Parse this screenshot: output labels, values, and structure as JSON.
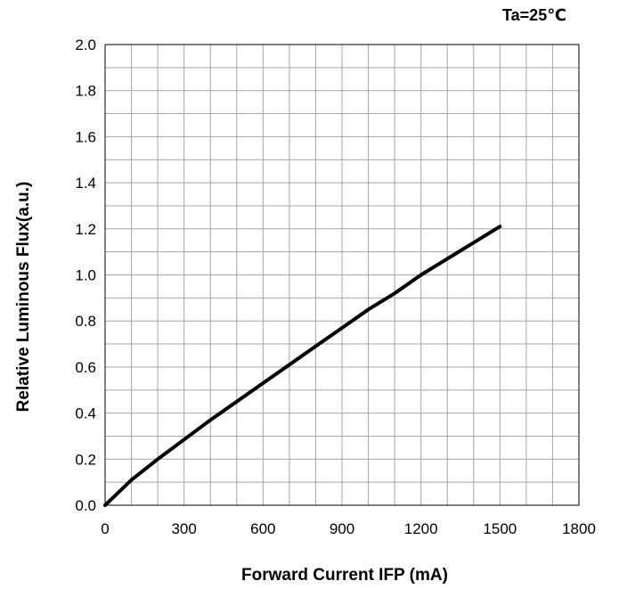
{
  "chart_data": {
    "type": "line",
    "title": "",
    "annotation": "Ta=25℃",
    "xlabel": "Forward Current IFP (mA)",
    "ylabel": "Relative Luminous Flux(a.u.)",
    "xlim": [
      0,
      1800
    ],
    "ylim": [
      0,
      2.0
    ],
    "x_ticks": [
      "0",
      "300",
      "600",
      "900",
      "1200",
      "1500",
      "1800"
    ],
    "y_ticks": [
      "0.0",
      "0.2",
      "0.4",
      "0.6",
      "0.8",
      "1.0",
      "1.2",
      "1.4",
      "1.6",
      "1.8",
      "2.0"
    ],
    "grid": true,
    "series": [
      {
        "x": [
          0,
          100,
          200,
          300,
          400,
          500,
          600,
          700,
          800,
          900,
          1000,
          1100,
          1200,
          1300,
          1400,
          1500
        ],
        "y": [
          0.0,
          0.11,
          0.2,
          0.285,
          0.37,
          0.45,
          0.53,
          0.61,
          0.69,
          0.77,
          0.85,
          0.92,
          1.0,
          1.07,
          1.14,
          1.21
        ],
        "color": "#000000"
      }
    ]
  }
}
